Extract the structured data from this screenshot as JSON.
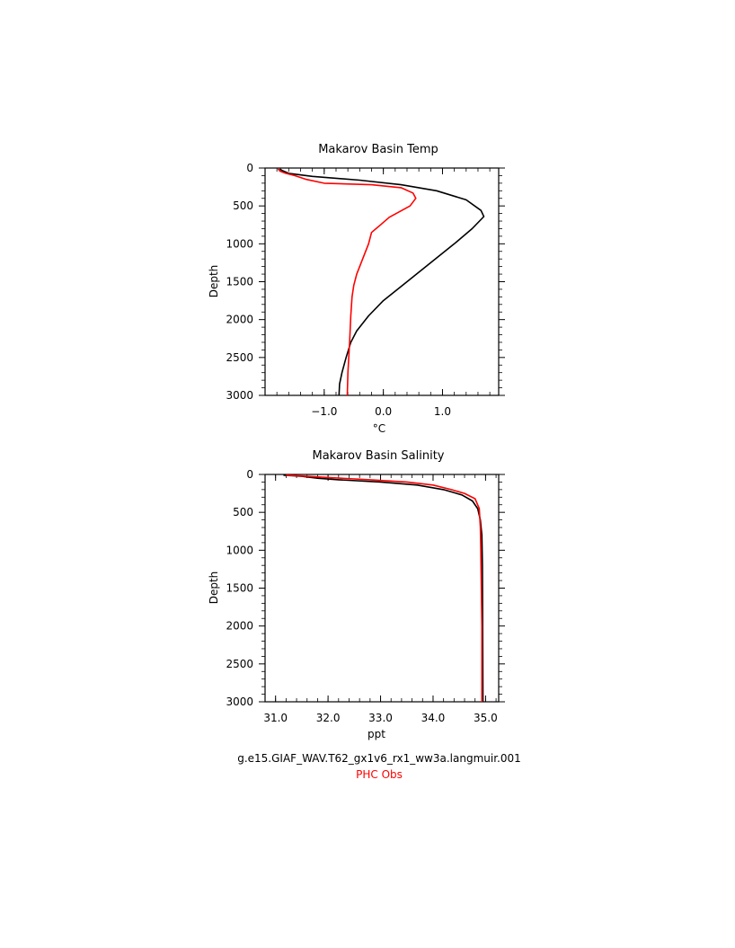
{
  "chart_data": [
    {
      "type": "line",
      "title": "Makarov Basin Temp",
      "xlabel": "°C",
      "ylabel": "Depth",
      "xlim": [
        -2.0,
        1.95
      ],
      "ylim": [
        3000,
        0
      ],
      "xticks": [
        -1.0,
        0.0,
        1.0
      ],
      "xtick_labels": [
        "−1.0",
        "0.0",
        "1.0"
      ],
      "yticks": [
        0,
        500,
        1000,
        1500,
        2000,
        2500,
        3000
      ],
      "ytick_labels": [
        "0",
        "500",
        "1000",
        "1500",
        "2000",
        "2500",
        "3000"
      ],
      "grid": false,
      "series": [
        {
          "color": "#000000",
          "points": [
            [
              -1.75,
              10
            ],
            [
              -1.72,
              30
            ],
            [
              -1.6,
              70
            ],
            [
              -1.2,
              110
            ],
            [
              -0.4,
              160
            ],
            [
              0.3,
              220
            ],
            [
              0.9,
              300
            ],
            [
              1.4,
              420
            ],
            [
              1.65,
              560
            ],
            [
              1.7,
              640
            ],
            [
              1.5,
              800
            ],
            [
              1.2,
              1000
            ],
            [
              0.8,
              1250
            ],
            [
              0.4,
              1500
            ],
            [
              0.0,
              1750
            ],
            [
              -0.25,
              1950
            ],
            [
              -0.45,
              2150
            ],
            [
              -0.55,
              2300
            ],
            [
              -0.63,
              2500
            ],
            [
              -0.7,
              2700
            ],
            [
              -0.74,
              2850
            ],
            [
              -0.75,
              3000
            ]
          ]
        },
        {
          "color": "#ff0000",
          "points": [
            [
              -1.78,
              10
            ],
            [
              -1.75,
              40
            ],
            [
              -1.65,
              70
            ],
            [
              -1.5,
              100
            ],
            [
              -1.3,
              150
            ],
            [
              -1.0,
              200
            ],
            [
              -0.2,
              220
            ],
            [
              0.3,
              260
            ],
            [
              0.5,
              330
            ],
            [
              0.55,
              400
            ],
            [
              0.45,
              500
            ],
            [
              0.1,
              650
            ],
            [
              -0.05,
              750
            ],
            [
              -0.2,
              850
            ],
            [
              -0.25,
              1000
            ],
            [
              -0.35,
              1200
            ],
            [
              -0.45,
              1400
            ],
            [
              -0.5,
              1550
            ],
            [
              -0.53,
              1700
            ],
            [
              -0.55,
              1950
            ],
            [
              -0.57,
              2300
            ],
            [
              -0.6,
              2700
            ],
            [
              -0.61,
              3000
            ]
          ]
        }
      ]
    },
    {
      "type": "line",
      "title": "Makarov Basin Salinity",
      "xlabel": "ppt",
      "ylabel": "Depth",
      "xlim": [
        30.8,
        35.25
      ],
      "ylim": [
        3000,
        0
      ],
      "xticks": [
        31.0,
        32.0,
        33.0,
        34.0,
        35.0
      ],
      "xtick_labels": [
        "31.0",
        "32.0",
        "33.0",
        "34.0",
        "35.0"
      ],
      "yticks": [
        0,
        500,
        1000,
        1500,
        2000,
        2500,
        3000
      ],
      "ytick_labels": [
        "0",
        "500",
        "1000",
        "1500",
        "2000",
        "2500",
        "3000"
      ],
      "grid": false,
      "series": [
        {
          "color": "#000000",
          "points": [
            [
              31.15,
              10
            ],
            [
              31.5,
              25
            ],
            [
              31.8,
              50
            ],
            [
              32.2,
              70
            ],
            [
              33.0,
              100
            ],
            [
              33.7,
              140
            ],
            [
              34.2,
              200
            ],
            [
              34.55,
              270
            ],
            [
              34.75,
              350
            ],
            [
              34.85,
              450
            ],
            [
              34.9,
              600
            ],
            [
              34.93,
              800
            ],
            [
              34.94,
              1200
            ],
            [
              34.95,
              3000
            ]
          ]
        },
        {
          "color": "#ff0000",
          "points": [
            [
              31.2,
              10
            ],
            [
              31.5,
              20
            ],
            [
              32.0,
              40
            ],
            [
              32.8,
              70
            ],
            [
              33.5,
              100
            ],
            [
              34.0,
              140
            ],
            [
              34.35,
              200
            ],
            [
              34.6,
              250
            ],
            [
              34.8,
              320
            ],
            [
              34.88,
              450
            ],
            [
              34.9,
              700
            ],
            [
              34.91,
              1000
            ],
            [
              34.93,
              2000
            ],
            [
              34.93,
              3000
            ]
          ]
        }
      ]
    }
  ],
  "captions": {
    "model_run": "g.e15.GIAF_WAV.T62_gx1v6_rx1_ww3a.langmuir.001",
    "obs": "PHC Obs"
  },
  "colors": {
    "model": "#000000",
    "obs": "#ff0000"
  }
}
